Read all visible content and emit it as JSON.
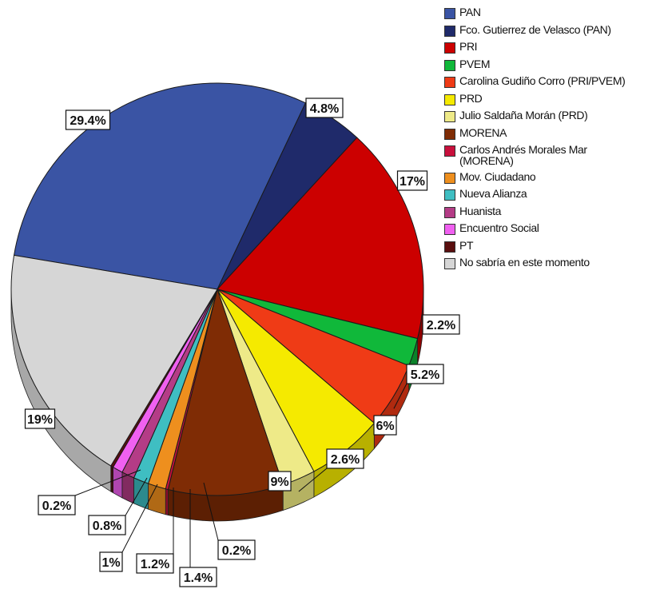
{
  "chart_data": {
    "type": "pie",
    "title": "",
    "slices": [
      {
        "label": "PAN",
        "value": 29.4,
        "display": "29.4%",
        "color": "#3a54a4",
        "side": "#2a3d78"
      },
      {
        "label": "Fco. Gutierrez de Velasco (PAN)",
        "value": 4.8,
        "display": "4.8%",
        "color": "#1f2a6a",
        "side": "#151d4a"
      },
      {
        "label": "PRI",
        "value": 17,
        "display": "17%",
        "color": "#cc0000",
        "side": "#8f0000"
      },
      {
        "label": "PVEM",
        "value": 2.2,
        "display": "2.2%",
        "color": "#10b83a",
        "side": "#0b8229"
      },
      {
        "label": "Carolina Gudiño Corro (PRI/PVEM)",
        "value": 5.2,
        "display": "5.2%",
        "color": "#ef3b16",
        "side": "#b02a0f"
      },
      {
        "label": "PRD",
        "value": 6,
        "display": "6%",
        "color": "#f5ea00",
        "side": "#b8b000"
      },
      {
        "label": "Julio Saldaña Morán (PRD)",
        "value": 2.6,
        "display": "2.6%",
        "color": "#eeea88",
        "side": "#b5b262"
      },
      {
        "label": "MORENA",
        "value": 9,
        "display": "9%",
        "color": "#7f2c05",
        "side": "#5c1f03"
      },
      {
        "label": "Carlos Andrés Morales Mar (MORENA)",
        "value": 0.2,
        "display": "0.2%",
        "color": "#c8103c",
        "side": "#900b2b"
      },
      {
        "label": "Mov. Ciudadano",
        "value": 1.4,
        "display": "1.4%",
        "color": "#ee8f1e",
        "side": "#b06915"
      },
      {
        "label": "Nueva Alianza",
        "value": 1.2,
        "display": "1.2%",
        "color": "#3fbec2",
        "side": "#2c8a8d"
      },
      {
        "label": "Huanista",
        "value": 1,
        "display": "1%",
        "color": "#b43c86",
        "side": "#822b60"
      },
      {
        "label": "Encuentro Social",
        "value": 0.8,
        "display": "0.8%",
        "color": "#f060f0",
        "side": "#b046b0"
      },
      {
        "label": "PT",
        "value": 0.2,
        "display": "0.2%",
        "color": "#5a0f0f",
        "side": "#3d0a0a"
      },
      {
        "label": "No sabría en este momento",
        "value": 19,
        "display": "19%",
        "color": "#d6d6d6",
        "side": "#a8a8a8"
      }
    ],
    "legend": {
      "placement": "right",
      "items": [
        {
          "lines": [
            "PAN"
          ],
          "color": "#3a54a4"
        },
        {
          "lines": [
            "Fco. Gutierrez de Velasco (PAN)"
          ],
          "color": "#1f2a6a"
        },
        {
          "lines": [
            "PRI"
          ],
          "color": "#cc0000"
        },
        {
          "lines": [
            "PVEM"
          ],
          "color": "#10b83a"
        },
        {
          "lines": [
            "Carolina Gudiño Corro (PRI/PVEM)"
          ],
          "color": "#ef3b16"
        },
        {
          "lines": [
            "PRD"
          ],
          "color": "#f5ea00"
        },
        {
          "lines": [
            "Julio Saldaña Morán (PRD)"
          ],
          "color": "#eeea88"
        },
        {
          "lines": [
            "MORENA"
          ],
          "color": "#7f2c05"
        },
        {
          "lines": [
            "Carlos Andrés Morales Mar",
            "(MORENA)"
          ],
          "color": "#c8103c"
        },
        {
          "lines": [
            "Mov. Ciudadano"
          ],
          "color": "#ee8f1e"
        },
        {
          "lines": [
            "Nueva Alianza"
          ],
          "color": "#3fbec2"
        },
        {
          "lines": [
            "Huanista"
          ],
          "color": "#b43c86"
        },
        {
          "lines": [
            "Encuentro Social"
          ],
          "color": "#f060f0"
        },
        {
          "lines": [
            "PT"
          ],
          "color": "#5a0f0f"
        },
        {
          "lines": [
            "No sabría en este momento"
          ],
          "color": "#d6d6d6"
        }
      ]
    }
  }
}
